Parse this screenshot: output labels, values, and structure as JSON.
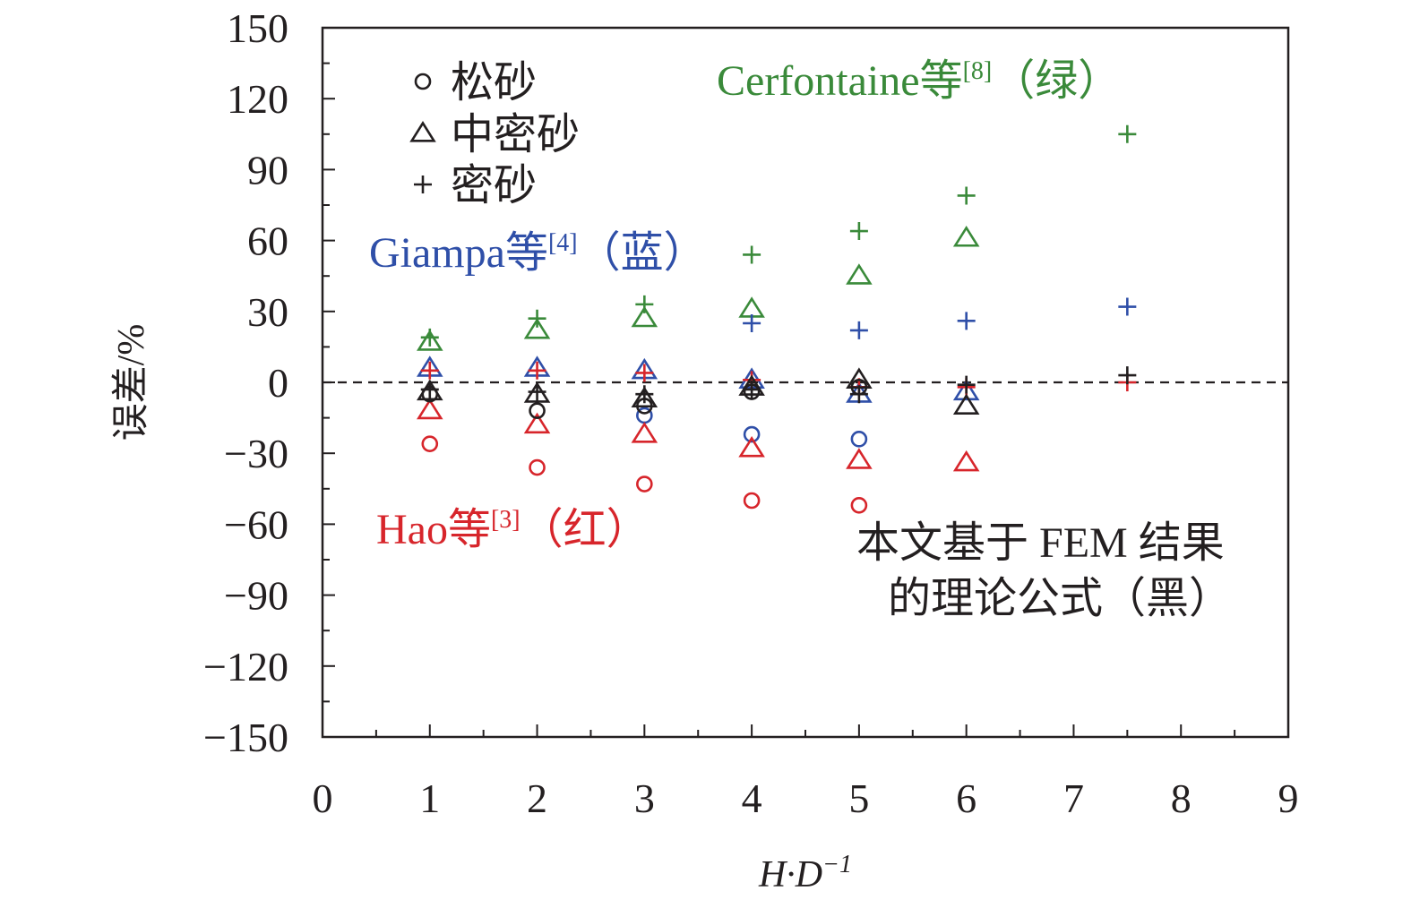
{
  "chart_data": {
    "type": "scatter",
    "title": "",
    "xlabel": "H·D",
    "xlabel_superscript": "−1",
    "ylabel": "误差/%",
    "xlim": [
      0,
      9
    ],
    "ylim": [
      -150,
      150
    ],
    "x_ticks": [
      "0",
      "1",
      "2",
      "3",
      "4",
      "5",
      "6",
      "7",
      "8",
      "9"
    ],
    "y_ticks": [
      "150",
      "120",
      "90",
      "60",
      "30",
      "0",
      "−30",
      "−60",
      "−90",
      "−120",
      "−150"
    ],
    "reference_line": {
      "y": 0,
      "style": "dashed"
    },
    "legend": {
      "position": "top-left",
      "items": [
        {
          "marker": "circle",
          "label": "松砂"
        },
        {
          "marker": "triangle",
          "label": "中密砂"
        },
        {
          "marker": "plus",
          "label": "密砂"
        }
      ]
    },
    "annotations": {
      "cerfontaine": {
        "name": "Cerfontaine等",
        "ref": "[8]",
        "tail": "（绿）",
        "color": "#3a8a3a"
      },
      "giampa": {
        "name": "Giampa等",
        "ref": "[4]",
        "tail": "（蓝）",
        "color": "#2f4fa8"
      },
      "hao": {
        "name": "Hao等",
        "ref": "[3]",
        "tail": "（红）",
        "color": "#d7252b"
      },
      "fem_line1": "本文基于 FEM 结果",
      "fem_line2": "的理论公式（黑）"
    },
    "series": [
      {
        "name": "Cerfontaine等 松砂",
        "color": "#3a8a3a",
        "marker": "circle",
        "x": [],
        "y": []
      },
      {
        "name": "Cerfontaine等 中密砂",
        "color": "#3a8a3a",
        "marker": "triangle",
        "x": [
          1,
          2,
          3,
          4,
          5,
          6
        ],
        "y": [
          17,
          22,
          27,
          31,
          45,
          61
        ]
      },
      {
        "name": "Cerfontaine等 密砂",
        "color": "#3a8a3a",
        "marker": "plus",
        "x": [
          1,
          2,
          3,
          4,
          5,
          6,
          7.5
        ],
        "y": [
          19,
          27,
          33,
          54,
          64,
          79,
          105
        ]
      },
      {
        "name": "Giampa等 松砂",
        "color": "#2f4fa8",
        "marker": "circle",
        "x": [
          3,
          4,
          5
        ],
        "y": [
          -14,
          -22,
          -24
        ]
      },
      {
        "name": "Giampa等 中密砂",
        "color": "#2f4fa8",
        "marker": "triangle",
        "x": [
          1,
          2,
          3,
          4,
          5,
          6
        ],
        "y": [
          6,
          6,
          5,
          1,
          -5,
          -4
        ]
      },
      {
        "name": "Giampa等 密砂",
        "color": "#2f4fa8",
        "marker": "plus",
        "x": [
          4,
          5,
          6,
          7.5
        ],
        "y": [
          25,
          22,
          26,
          32
        ]
      },
      {
        "name": "Hao等 松砂",
        "color": "#d7252b",
        "marker": "circle",
        "x": [
          1,
          2,
          3,
          4,
          5
        ],
        "y": [
          -26,
          -36,
          -43,
          -50,
          -52
        ]
      },
      {
        "name": "Hao等 中密砂",
        "color": "#d7252b",
        "marker": "triangle",
        "x": [
          1,
          2,
          3,
          4,
          5,
          6
        ],
        "y": [
          -12,
          -18,
          -22,
          -28,
          -33,
          -34
        ]
      },
      {
        "name": "Hao等 密砂",
        "color": "#d7252b",
        "marker": "plus",
        "x": [
          1,
          2,
          3,
          4,
          5,
          6,
          7.5
        ],
        "y": [
          5,
          5,
          4,
          1,
          -2,
          -2,
          0
        ]
      },
      {
        "name": "FEM 松砂",
        "color": "#231f20",
        "marker": "circle",
        "x": [
          1,
          2,
          3,
          4,
          5
        ],
        "y": [
          -5,
          -12,
          -10,
          -4,
          -2
        ]
      },
      {
        "name": "FEM 中密砂",
        "color": "#231f20",
        "marker": "triangle",
        "x": [
          1,
          2,
          3,
          4,
          5,
          6
        ],
        "y": [
          -4,
          -5,
          -7,
          -2,
          1,
          -10
        ]
      },
      {
        "name": "FEM 密砂",
        "color": "#231f20",
        "marker": "plus",
        "x": [
          1,
          2,
          3,
          4,
          5,
          6,
          7.5
        ],
        "y": [
          -3,
          -4,
          -5,
          -3,
          -5,
          -1,
          3
        ]
      }
    ]
  }
}
